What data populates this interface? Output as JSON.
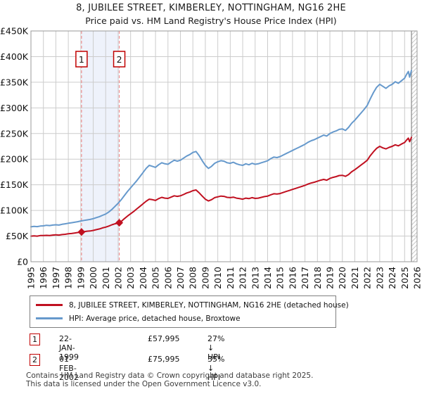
{
  "title": "8, JUBILEE STREET, KIMBERLEY, NOTTINGHAM, NG16 2HE",
  "subtitle": "Price paid vs. HM Land Registry's House Price Index (HPI)",
  "legend": {
    "series1": "8, JUBILEE STREET, KIMBERLEY, NOTTINGHAM, NG16 2HE (detached house)",
    "series2": "HPI: Average price, detached house, Broxtowe"
  },
  "transactions": [
    {
      "num": "1",
      "date": "22-JAN-1999",
      "price": "£57,995",
      "delta": "27% ↓ HPI"
    },
    {
      "num": "2",
      "date": "01-FEB-2002",
      "price": "£75,995",
      "delta": "35% ↓ HPI"
    }
  ],
  "footer": {
    "line1": "Contains HM Land Registry data © Crown copyright and database right 2025.",
    "line2": "This data is licensed under the Open Government Licence v3.0."
  },
  "colors": {
    "price_line": "#c01020",
    "hpi_line": "#6699cc",
    "grid": "#cccccc",
    "border": "#999999",
    "band": "#eef2fb",
    "dashed": "#ee8080",
    "hatch": "#c8c8c8",
    "hatch_edge": "#888888",
    "marker_box_border": "#c00000",
    "tick_text": "#111111"
  },
  "chart_data": {
    "type": "line",
    "title": "Price paid vs. HM Land Registry's House Price Index (HPI)",
    "x_range": [
      1995,
      2026
    ],
    "y_range": [
      0,
      450000
    ],
    "grid": true,
    "legend_position": "bottom",
    "x_tick_labels": [
      "1995",
      "1996",
      "1997",
      "1998",
      "1999",
      "2000",
      "2001",
      "2002",
      "2003",
      "2004",
      "2005",
      "2006",
      "2007",
      "2008",
      "2009",
      "2010",
      "2011",
      "2012",
      "2013",
      "2014",
      "2015",
      "2016",
      "2017",
      "2018",
      "2019",
      "2020",
      "2021",
      "2022",
      "2023",
      "2024",
      "2025",
      "2026"
    ],
    "y_tick_values": [
      0,
      50000,
      100000,
      150000,
      200000,
      250000,
      300000,
      350000,
      400000,
      450000
    ],
    "y_tick_labels": [
      "£0",
      "£50K",
      "£100K",
      "£150K",
      "£200K",
      "£250K",
      "£300K",
      "£350K",
      "£400K",
      "£450K"
    ],
    "shaded_band": {
      "from": 1999.06,
      "to": 2002.09
    },
    "hatch_from": 2025.55,
    "sale_markers": [
      {
        "x": 1999.06,
        "y": 57995,
        "label": "1"
      },
      {
        "x": 2002.09,
        "y": 75995,
        "label": "2"
      }
    ],
    "series": [
      {
        "name": "8, JUBILEE STREET, KIMBERLEY, NOTTINGHAM, NG16 2HE (detached house)",
        "color_key": "price_line",
        "points": [
          [
            1995.0,
            50000
          ],
          [
            1995.25,
            50500
          ],
          [
            1995.5,
            50000
          ],
          [
            1995.75,
            51000
          ],
          [
            1996.0,
            51000
          ],
          [
            1996.25,
            51500
          ],
          [
            1996.5,
            51000
          ],
          [
            1996.75,
            52000
          ],
          [
            1997.0,
            52500
          ],
          [
            1997.25,
            52000
          ],
          [
            1997.5,
            53000
          ],
          [
            1997.75,
            53500
          ],
          [
            1998.0,
            54500
          ],
          [
            1998.25,
            55000
          ],
          [
            1998.5,
            56000
          ],
          [
            1998.75,
            57000
          ],
          [
            1999.06,
            57995
          ],
          [
            1999.25,
            58500
          ],
          [
            1999.5,
            59500
          ],
          [
            1999.75,
            60000
          ],
          [
            2000.0,
            61000
          ],
          [
            2000.25,
            62500
          ],
          [
            2000.5,
            64000
          ],
          [
            2000.75,
            66000
          ],
          [
            2001.0,
            67500
          ],
          [
            2001.25,
            69500
          ],
          [
            2001.5,
            72000
          ],
          [
            2001.75,
            74000
          ],
          [
            2002.09,
            75995
          ],
          [
            2002.25,
            78500
          ],
          [
            2002.5,
            84000
          ],
          [
            2002.75,
            89000
          ],
          [
            2003.0,
            93500
          ],
          [
            2003.25,
            98000
          ],
          [
            2003.5,
            103000
          ],
          [
            2003.75,
            108000
          ],
          [
            2004.0,
            113000
          ],
          [
            2004.25,
            118000
          ],
          [
            2004.5,
            122000
          ],
          [
            2004.75,
            121000
          ],
          [
            2005.0,
            119500
          ],
          [
            2005.25,
            123000
          ],
          [
            2005.5,
            125500
          ],
          [
            2005.75,
            124000
          ],
          [
            2006.0,
            123500
          ],
          [
            2006.25,
            126000
          ],
          [
            2006.5,
            128500
          ],
          [
            2006.75,
            127500
          ],
          [
            2007.0,
            128500
          ],
          [
            2007.25,
            131000
          ],
          [
            2007.5,
            134000
          ],
          [
            2007.75,
            136000
          ],
          [
            2008.0,
            138500
          ],
          [
            2008.25,
            140000
          ],
          [
            2008.5,
            134500
          ],
          [
            2008.75,
            128000
          ],
          [
            2009.0,
            122000
          ],
          [
            2009.25,
            118500
          ],
          [
            2009.5,
            121000
          ],
          [
            2009.75,
            125000
          ],
          [
            2010.0,
            126500
          ],
          [
            2010.25,
            128000
          ],
          [
            2010.5,
            127500
          ],
          [
            2010.75,
            125500
          ],
          [
            2011.0,
            125000
          ],
          [
            2011.25,
            126000
          ],
          [
            2011.5,
            124000
          ],
          [
            2011.75,
            123000
          ],
          [
            2012.0,
            122000
          ],
          [
            2012.25,
            124000
          ],
          [
            2012.5,
            123000
          ],
          [
            2012.75,
            125000
          ],
          [
            2013.0,
            123500
          ],
          [
            2013.25,
            124000
          ],
          [
            2013.5,
            125500
          ],
          [
            2013.75,
            127000
          ],
          [
            2014.0,
            128000
          ],
          [
            2014.25,
            130500
          ],
          [
            2014.5,
            132500
          ],
          [
            2014.75,
            132000
          ],
          [
            2015.0,
            133000
          ],
          [
            2015.25,
            135000
          ],
          [
            2015.5,
            137000
          ],
          [
            2015.75,
            139000
          ],
          [
            2016.0,
            141000
          ],
          [
            2016.25,
            143000
          ],
          [
            2016.5,
            145000
          ],
          [
            2016.75,
            147000
          ],
          [
            2017.0,
            149000
          ],
          [
            2017.25,
            151500
          ],
          [
            2017.5,
            153500
          ],
          [
            2017.75,
            155000
          ],
          [
            2018.0,
            157000
          ],
          [
            2018.25,
            159000
          ],
          [
            2018.5,
            160500
          ],
          [
            2018.75,
            159000
          ],
          [
            2019.0,
            162500
          ],
          [
            2019.25,
            164500
          ],
          [
            2019.5,
            166000
          ],
          [
            2019.75,
            168000
          ],
          [
            2020.0,
            168500
          ],
          [
            2020.25,
            166500
          ],
          [
            2020.5,
            170000
          ],
          [
            2020.75,
            175500
          ],
          [
            2021.0,
            179500
          ],
          [
            2021.25,
            184000
          ],
          [
            2021.5,
            188500
          ],
          [
            2021.75,
            193000
          ],
          [
            2022.0,
            198000
          ],
          [
            2022.25,
            207000
          ],
          [
            2022.5,
            214500
          ],
          [
            2022.75,
            221000
          ],
          [
            2023.0,
            225000
          ],
          [
            2023.25,
            222000
          ],
          [
            2023.5,
            220000
          ],
          [
            2023.75,
            223000
          ],
          [
            2024.0,
            225000
          ],
          [
            2024.25,
            228000
          ],
          [
            2024.5,
            226000
          ],
          [
            2024.75,
            229500
          ],
          [
            2025.0,
            232500
          ],
          [
            2025.15,
            237000
          ],
          [
            2025.3,
            241000
          ],
          [
            2025.4,
            234000
          ],
          [
            2025.55,
            242500
          ]
        ]
      },
      {
        "name": "HPI: Average price, detached house, Broxtowe",
        "color_key": "hpi_line",
        "points": [
          [
            1995.0,
            68000
          ],
          [
            1995.25,
            69000
          ],
          [
            1995.5,
            68500
          ],
          [
            1995.75,
            69500
          ],
          [
            1996.0,
            70000
          ],
          [
            1996.25,
            71000
          ],
          [
            1996.5,
            70500
          ],
          [
            1996.75,
            71500
          ],
          [
            1997.0,
            72000
          ],
          [
            1997.25,
            71500
          ],
          [
            1997.5,
            73000
          ],
          [
            1997.75,
            74000
          ],
          [
            1998.0,
            75000
          ],
          [
            1998.25,
            76000
          ],
          [
            1998.5,
            77000
          ],
          [
            1998.75,
            78000
          ],
          [
            1999.0,
            79500
          ],
          [
            1999.25,
            80500
          ],
          [
            1999.5,
            81500
          ],
          [
            1999.75,
            82500
          ],
          [
            2000.0,
            84000
          ],
          [
            2000.25,
            86000
          ],
          [
            2000.5,
            88000
          ],
          [
            2000.75,
            90500
          ],
          [
            2001.0,
            93000
          ],
          [
            2001.25,
            97000
          ],
          [
            2001.5,
            102000
          ],
          [
            2001.75,
            108000
          ],
          [
            2002.0,
            114000
          ],
          [
            2002.25,
            121000
          ],
          [
            2002.5,
            129000
          ],
          [
            2002.75,
            137000
          ],
          [
            2003.0,
            144000
          ],
          [
            2003.25,
            151000
          ],
          [
            2003.5,
            158000
          ],
          [
            2003.75,
            166000
          ],
          [
            2004.0,
            174000
          ],
          [
            2004.25,
            182000
          ],
          [
            2004.5,
            188000
          ],
          [
            2004.75,
            186000
          ],
          [
            2005.0,
            184000
          ],
          [
            2005.25,
            189000
          ],
          [
            2005.5,
            193000
          ],
          [
            2005.75,
            191000
          ],
          [
            2006.0,
            190000
          ],
          [
            2006.25,
            194000
          ],
          [
            2006.5,
            198000
          ],
          [
            2006.75,
            196000
          ],
          [
            2007.0,
            198000
          ],
          [
            2007.25,
            202000
          ],
          [
            2007.5,
            206000
          ],
          [
            2007.75,
            209000
          ],
          [
            2008.0,
            213000
          ],
          [
            2008.25,
            215000
          ],
          [
            2008.5,
            207000
          ],
          [
            2008.75,
            197000
          ],
          [
            2009.0,
            188000
          ],
          [
            2009.25,
            182000
          ],
          [
            2009.5,
            186000
          ],
          [
            2009.75,
            192000
          ],
          [
            2010.0,
            195000
          ],
          [
            2010.25,
            197000
          ],
          [
            2010.5,
            196000
          ],
          [
            2010.75,
            193000
          ],
          [
            2011.0,
            192000
          ],
          [
            2011.25,
            194000
          ],
          [
            2011.5,
            191000
          ],
          [
            2011.75,
            189000
          ],
          [
            2012.0,
            188000
          ],
          [
            2012.25,
            191000
          ],
          [
            2012.5,
            189000
          ],
          [
            2012.75,
            192000
          ],
          [
            2013.0,
            190000
          ],
          [
            2013.25,
            191000
          ],
          [
            2013.5,
            193000
          ],
          [
            2013.75,
            195000
          ],
          [
            2014.0,
            197000
          ],
          [
            2014.25,
            201000
          ],
          [
            2014.5,
            204000
          ],
          [
            2014.75,
            203000
          ],
          [
            2015.0,
            205000
          ],
          [
            2015.25,
            208000
          ],
          [
            2015.5,
            211000
          ],
          [
            2015.75,
            214000
          ],
          [
            2016.0,
            217000
          ],
          [
            2016.25,
            220000
          ],
          [
            2016.5,
            223000
          ],
          [
            2016.75,
            226000
          ],
          [
            2017.0,
            229000
          ],
          [
            2017.25,
            233000
          ],
          [
            2017.5,
            236000
          ],
          [
            2017.75,
            238000
          ],
          [
            2018.0,
            241000
          ],
          [
            2018.25,
            244000
          ],
          [
            2018.5,
            247000
          ],
          [
            2018.75,
            245000
          ],
          [
            2019.0,
            250000
          ],
          [
            2019.25,
            253000
          ],
          [
            2019.5,
            255000
          ],
          [
            2019.75,
            258000
          ],
          [
            2020.0,
            259000
          ],
          [
            2020.25,
            256000
          ],
          [
            2020.5,
            262000
          ],
          [
            2020.75,
            270000
          ],
          [
            2021.0,
            276000
          ],
          [
            2021.25,
            283000
          ],
          [
            2021.5,
            290000
          ],
          [
            2021.75,
            297000
          ],
          [
            2022.0,
            305000
          ],
          [
            2022.25,
            318000
          ],
          [
            2022.5,
            330000
          ],
          [
            2022.75,
            340000
          ],
          [
            2023.0,
            346000
          ],
          [
            2023.25,
            342000
          ],
          [
            2023.5,
            338000
          ],
          [
            2023.75,
            343000
          ],
          [
            2024.0,
            346000
          ],
          [
            2024.25,
            351000
          ],
          [
            2024.5,
            348000
          ],
          [
            2024.75,
            353000
          ],
          [
            2025.0,
            358000
          ],
          [
            2025.15,
            365000
          ],
          [
            2025.3,
            371000
          ],
          [
            2025.4,
            360000
          ],
          [
            2025.55,
            373000
          ]
        ]
      }
    ]
  }
}
